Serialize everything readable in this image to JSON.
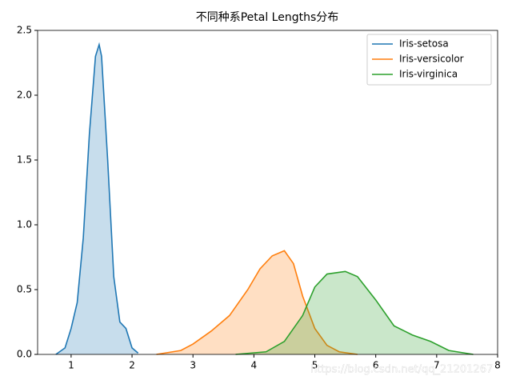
{
  "chart_data": {
    "type": "line",
    "fill_area": true,
    "title": "不同种系Petal Lengths分布",
    "xlim": [
      0.45,
      8
    ],
    "ylim": [
      0,
      2.5
    ],
    "xticks": [
      1,
      2,
      3,
      4,
      5,
      6,
      7,
      8
    ],
    "yticks": [
      {
        "value": 0,
        "label": "0.0"
      },
      0.5,
      {
        "value": 1,
        "label": "1.0"
      },
      1.5,
      {
        "value": 2,
        "label": "2.0"
      },
      2.5
    ],
    "legend": "upper right",
    "series": [
      {
        "name": "Iris-setosa",
        "color": "#1f77b4",
        "x": [
          0.75,
          0.9,
          1.0,
          1.1,
          1.2,
          1.3,
          1.4,
          1.46,
          1.5,
          1.6,
          1.7,
          1.8,
          1.9,
          2.0,
          2.1
        ],
        "values": [
          0,
          0.05,
          0.2,
          0.4,
          0.9,
          1.7,
          2.3,
          2.39,
          2.3,
          1.5,
          0.6,
          0.25,
          0.2,
          0.05,
          0.01
        ]
      },
      {
        "name": "Iris-versicolor",
        "color": "#ff7f0e",
        "x": [
          2.4,
          2.8,
          3.0,
          3.3,
          3.6,
          3.9,
          4.1,
          4.3,
          4.5,
          4.65,
          4.8,
          5.0,
          5.2,
          5.4,
          5.7
        ],
        "values": [
          0,
          0.03,
          0.08,
          0.18,
          0.3,
          0.5,
          0.66,
          0.76,
          0.8,
          0.7,
          0.45,
          0.2,
          0.07,
          0.02,
          0
        ]
      },
      {
        "name": "Iris-virginica",
        "color": "#2ca02c",
        "x": [
          3.7,
          4.2,
          4.5,
          4.8,
          5.0,
          5.2,
          5.5,
          5.7,
          6.0,
          6.3,
          6.6,
          6.9,
          7.2,
          7.6
        ],
        "values": [
          0,
          0.02,
          0.1,
          0.3,
          0.52,
          0.62,
          0.64,
          0.6,
          0.42,
          0.22,
          0.15,
          0.1,
          0.03,
          0
        ]
      }
    ],
    "watermark": "https://blog.csdn.net/qq_21201267"
  }
}
